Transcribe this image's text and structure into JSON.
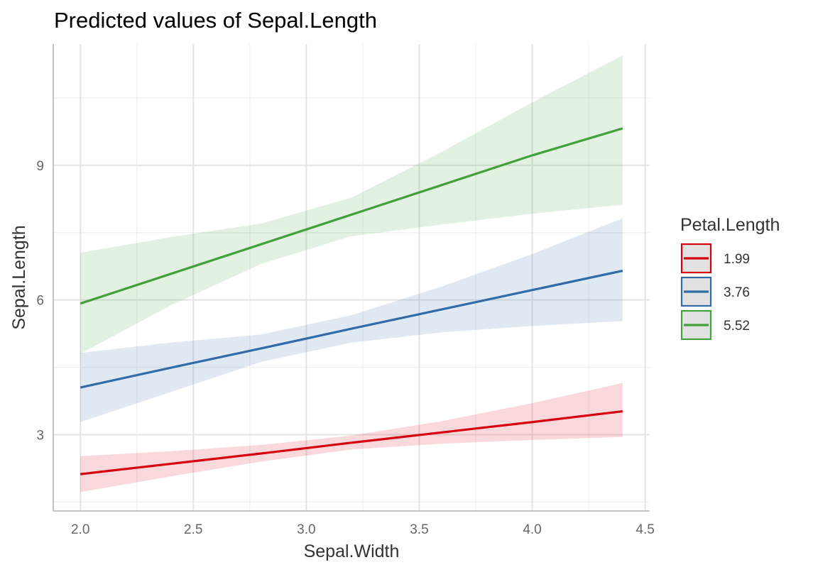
{
  "chart_data": {
    "type": "line",
    "title": "Predicted values of Sepal.Length",
    "xlabel": "Sepal.Width",
    "ylabel": "Sepal.Length",
    "xlim": [
      1.88,
      4.52
    ],
    "ylim": [
      1.3,
      11.7
    ],
    "x_ticks": [
      2.0,
      2.5,
      3.0,
      3.5,
      4.0,
      4.5
    ],
    "x_tick_labels": [
      "2.0",
      "2.5",
      "3.0",
      "3.5",
      "4.0",
      "4.5"
    ],
    "y_ticks": [
      3,
      6,
      9
    ],
    "y_tick_labels": [
      "3",
      "6",
      "9"
    ],
    "grid": true,
    "legend": {
      "title": "Petal.Length",
      "position": "right"
    },
    "series": [
      {
        "name": "1.99",
        "color": "#D7000F",
        "x": [
          2.0,
          2.4,
          2.8,
          3.2,
          3.6,
          4.0,
          4.4
        ],
        "y": [
          2.12,
          2.35,
          2.58,
          2.82,
          3.05,
          3.28,
          3.52
        ],
        "ci_low": [
          1.72,
          2.07,
          2.4,
          2.67,
          2.8,
          2.88,
          2.95
        ],
        "ci_high": [
          2.52,
          2.63,
          2.77,
          2.98,
          3.3,
          3.7,
          4.15
        ]
      },
      {
        "name": "3.76",
        "color": "#2F6CA8",
        "x": [
          2.0,
          2.4,
          2.8,
          3.2,
          3.6,
          4.0,
          4.4
        ],
        "y": [
          4.05,
          4.49,
          4.92,
          5.36,
          5.79,
          6.22,
          6.65
        ],
        "ci_low": [
          3.28,
          3.95,
          4.62,
          5.05,
          5.28,
          5.42,
          5.53
        ],
        "ci_high": [
          4.82,
          5.05,
          5.23,
          5.66,
          6.3,
          7.02,
          7.82
        ]
      },
      {
        "name": "5.52",
        "color": "#43A13B",
        "x": [
          2.0,
          2.4,
          2.8,
          3.2,
          3.6,
          4.0,
          4.4
        ],
        "y": [
          5.92,
          6.58,
          7.24,
          7.9,
          8.56,
          9.22,
          9.82
        ],
        "ci_low": [
          4.8,
          5.88,
          6.8,
          7.42,
          7.68,
          7.92,
          8.12
        ],
        "ci_high": [
          7.05,
          7.4,
          7.7,
          8.28,
          9.3,
          10.4,
          11.45
        ]
      }
    ]
  }
}
